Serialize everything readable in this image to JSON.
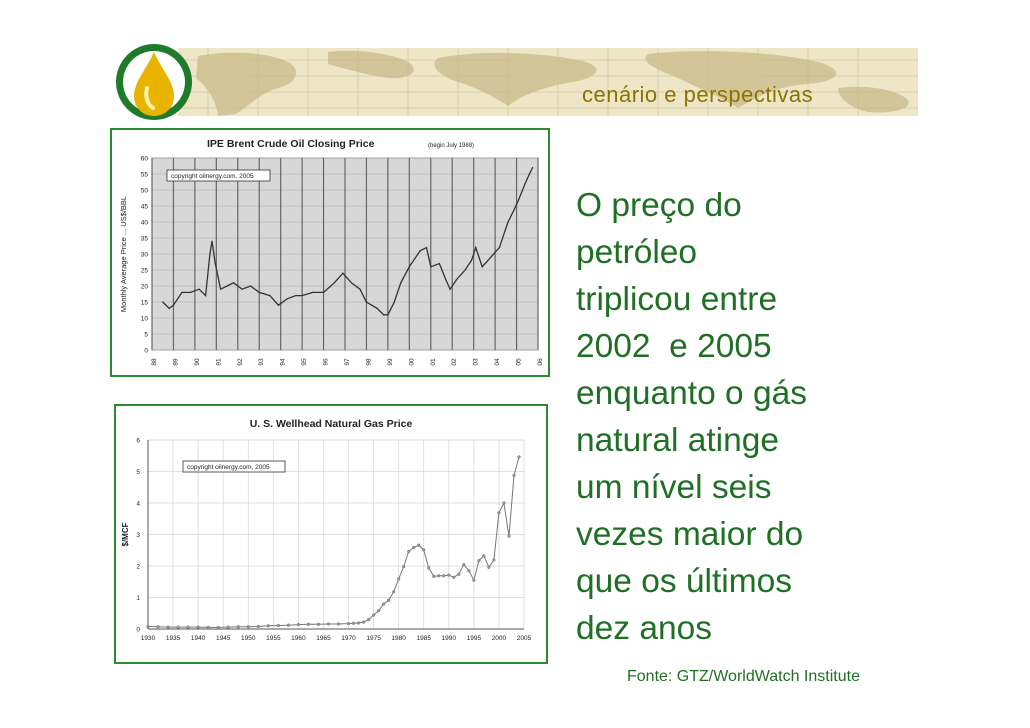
{
  "header": {
    "title": "cenário e perspectivas",
    "logo_icon": "oil-drop-icon",
    "colors": {
      "accent": "#8a7400",
      "text": "#1f6f24",
      "frame": "#2d8a2f"
    }
  },
  "main": {
    "lines": [
      "O preço do",
      "petróleo",
      "triplicou entre",
      "2002  e 2005",
      "enquanto o gás",
      "natural atinge",
      "um nível seis",
      "vezes maior do",
      "que os últimos",
      "dez anos"
    ]
  },
  "footer": {
    "source": "Fonte: GTZ/WorldWatch Institute"
  },
  "chart_data": [
    {
      "type": "line",
      "title": "IPE Brent Crude Oil Closing Price",
      "subtitle": "(begin July 1988)",
      "ylabel": "Monthly Average Price ... US$/BBL",
      "xlabel": "",
      "annotation": "copyright oilnergy.com, 2005",
      "ylim": [
        0,
        60
      ],
      "yticks": [
        0,
        5,
        10,
        15,
        20,
        25,
        30,
        35,
        40,
        45,
        50,
        55,
        60
      ],
      "xlim": [
        1988,
        2006
      ],
      "xticks": [
        "88",
        "89",
        "90",
        "91",
        "92",
        "93",
        "94",
        "95",
        "96",
        "97",
        "98",
        "99",
        "00",
        "01",
        "02",
        "03",
        "04",
        "05",
        "06"
      ],
      "grid": true,
      "x": [
        1988.5,
        1988.8,
        1989.0,
        1989.4,
        1989.8,
        1990.2,
        1990.5,
        1990.7,
        1990.8,
        1990.95,
        1991.2,
        1991.5,
        1991.8,
        1992.2,
        1992.6,
        1993.0,
        1993.5,
        1993.9,
        1994.3,
        1994.7,
        1995.0,
        1995.5,
        1996.0,
        1996.5,
        1996.9,
        1997.3,
        1997.7,
        1998.0,
        1998.5,
        1998.8,
        1999.0,
        1999.3,
        1999.6,
        2000.0,
        2000.5,
        2000.8,
        2001.0,
        2001.4,
        2001.7,
        2001.9,
        2002.2,
        2002.6,
        2002.9,
        2003.1,
        2003.4,
        2003.8,
        2004.2,
        2004.6,
        2004.9,
        2005.1,
        2005.4,
        2005.6,
        2005.75
      ],
      "values": [
        15,
        13,
        14,
        18,
        18,
        19,
        17,
        30,
        34,
        27,
        19,
        20,
        21,
        19,
        20,
        18,
        17,
        14,
        16,
        17,
        17,
        18,
        18,
        21,
        24,
        21,
        19,
        15,
        13,
        11,
        11,
        15,
        21,
        26,
        31,
        32,
        26,
        27,
        22,
        19,
        22,
        25,
        28,
        32,
        26,
        29,
        32,
        40,
        44,
        47,
        52,
        55,
        57
      ]
    },
    {
      "type": "line",
      "title": "U. S. Wellhead Natural Gas Price",
      "ylabel": "$/MCF",
      "xlabel": "",
      "annotation": "copyright oilnergy.com, 2005",
      "ylim": [
        0,
        6
      ],
      "yticks": [
        0,
        1,
        2,
        3,
        4,
        5,
        6
      ],
      "xlim": [
        1930,
        2005
      ],
      "xticks": [
        "1930",
        "1935",
        "1940",
        "1945",
        "1950",
        "1955",
        "1960",
        "1965",
        "1970",
        "1975",
        "1980",
        "1985",
        "1990",
        "1995",
        "2000",
        "2005"
      ],
      "grid": true,
      "x": [
        1930,
        1932,
        1934,
        1936,
        1938,
        1940,
        1942,
        1944,
        1946,
        1948,
        1950,
        1952,
        1954,
        1956,
        1958,
        1960,
        1962,
        1964,
        1966,
        1968,
        1970,
        1971,
        1972,
        1973,
        1974,
        1975,
        1976,
        1977,
        1978,
        1979,
        1980,
        1981,
        1982,
        1983,
        1984,
        1985,
        1986,
        1987,
        1988,
        1989,
        1990,
        1991,
        1992,
        1993,
        1994,
        1995,
        1996,
        1997,
        1998,
        1999,
        2000,
        2001,
        2002,
        2003,
        2004
      ],
      "values": [
        0.08,
        0.07,
        0.06,
        0.06,
        0.06,
        0.06,
        0.05,
        0.05,
        0.06,
        0.07,
        0.07,
        0.08,
        0.1,
        0.11,
        0.12,
        0.14,
        0.15,
        0.15,
        0.16,
        0.16,
        0.17,
        0.18,
        0.19,
        0.22,
        0.3,
        0.44,
        0.58,
        0.79,
        0.91,
        1.18,
        1.59,
        1.98,
        2.46,
        2.59,
        2.66,
        2.51,
        1.94,
        1.67,
        1.69,
        1.69,
        1.71,
        1.64,
        1.74,
        2.04,
        1.85,
        1.55,
        2.17,
        2.32,
        1.96,
        2.19,
        3.69,
        4.0,
        2.95,
        4.88,
        5.46
      ]
    }
  ]
}
